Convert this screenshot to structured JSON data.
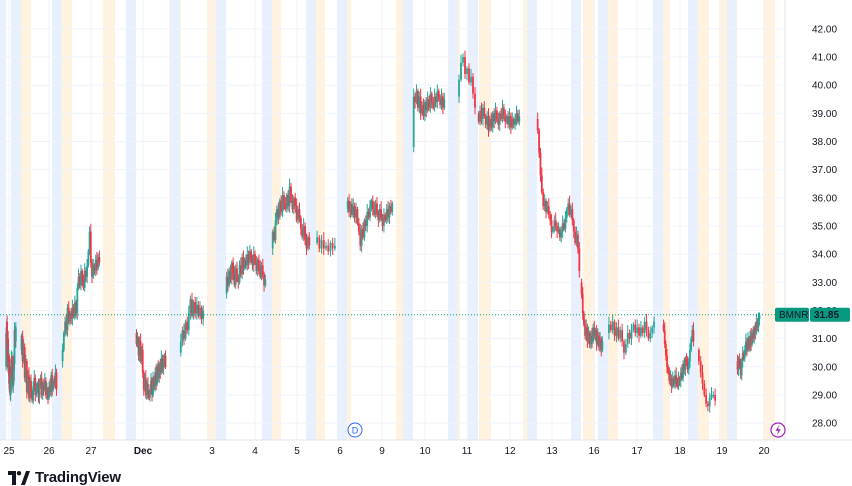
{
  "brand": {
    "name": "TradingView",
    "logo_icon": "tradingview-logo-icon"
  },
  "colors": {
    "up": "#26a69a",
    "down": "#f23645",
    "last_price": "#089981",
    "session_pre": "#fff3e0",
    "session_post": "#e8f0fe",
    "accent_purple": "#9c27b0",
    "marker_blue": "#2962ff"
  },
  "markers": {
    "dividend_label": "D",
    "flash_icon": "lightning-icon"
  },
  "chart_data": {
    "type": "candlestick",
    "symbol": "BMNR",
    "last_price": 31.85,
    "last_price_label": "31.85",
    "ylim": [
      27.4,
      42.6
    ],
    "yticks": [
      28.0,
      29.0,
      30.0,
      31.0,
      32.0,
      33.0,
      34.0,
      35.0,
      36.0,
      37.0,
      38.0,
      39.0,
      40.0,
      41.0,
      42.0
    ],
    "ytick_labels": [
      "28.00",
      "29.00",
      "30.00",
      "31.00",
      "32.00",
      "33.00",
      "34.00",
      "35.00",
      "36.00",
      "37.00",
      "38.00",
      "39.00",
      "40.00",
      "41.00",
      "42.00"
    ],
    "x_labels": [
      "25",
      "26",
      "27",
      "Dec",
      "3",
      "4",
      "5",
      "6",
      "9",
      "10",
      "11",
      "12",
      "13",
      "16",
      "17",
      "18",
      "19",
      "20"
    ],
    "grid": true,
    "days": [
      {
        "label": "25",
        "points": [
          30.0,
          31.2,
          30.6,
          31.6,
          30.9,
          30.1,
          31.0,
          30.2,
          29.8,
          30.4,
          29.4,
          30.0,
          29.1,
          29.6,
          29.0,
          29.4,
          29.2,
          30.3,
          29.8,
          30.3,
          29.6,
          30.1,
          29.3,
          29.9,
          29.5,
          30.4,
          30.1,
          31.3,
          30.8,
          31.2,
          30.9,
          31.4
        ]
      },
      {
        "label": "26",
        "points": [
          30.6,
          31.1,
          30.2,
          30.7,
          29.6,
          30.2,
          29.1,
          29.7,
          28.9,
          29.5,
          29.1,
          28.8,
          29.3,
          29.6,
          29.0,
          29.2,
          29.4,
          28.9,
          29.3,
          29.6,
          29.0,
          29.4,
          29.2,
          29.5,
          29.0,
          29.2,
          28.9,
          29.3,
          29.1,
          29.7,
          29.2,
          29.5,
          29.4,
          29.8,
          29.2
        ]
      },
      {
        "label": "27",
        "points": [
          30.2,
          30.6,
          31.2,
          31.6,
          31.3,
          32.1,
          31.6,
          31.9,
          31.7,
          32.1,
          31.8,
          32.3,
          31.9,
          32.8,
          33.2,
          32.9,
          33.4,
          33.1,
          32.8,
          33.4,
          33.2,
          33.6,
          34.1,
          34.8,
          33.7,
          33.2,
          33.6,
          33.4,
          33.8,
          33.5,
          33.9,
          33.7
        ]
      },
      {
        "label": "Dec",
        "points": [
          31.2,
          30.8,
          31.0,
          30.4,
          30.9,
          30.2,
          30.6,
          29.8,
          29.2,
          29.6,
          29.0,
          29.4,
          29.1,
          28.9,
          29.2,
          29.5,
          29.0,
          29.6,
          29.3,
          29.8,
          29.4,
          30.0,
          29.6,
          30.1,
          29.8,
          30.3,
          29.9,
          30.2,
          30.4,
          30.0
        ]
      },
      {
        "label": "3",
        "points": [
          30.5,
          30.9,
          31.3,
          31.0,
          31.6,
          31.3,
          31.9,
          32.4,
          31.8,
          32.3,
          31.9,
          32.2,
          31.8,
          32.1,
          31.7,
          32.0
        ]
      },
      {
        "label": "4",
        "points": [
          32.6,
          33.2,
          32.9,
          33.4,
          33.1,
          33.7,
          33.3,
          32.9,
          33.5,
          33.2,
          33.0,
          33.6,
          33.3,
          33.9,
          33.5,
          33.8,
          33.6,
          34.0,
          33.7,
          34.1,
          33.8,
          33.6,
          34.0,
          33.7,
          33.4,
          33.8,
          33.5,
          33.2,
          33.6,
          33.3,
          32.9,
          33.1
        ]
      },
      {
        "label": "5",
        "points": [
          34.2,
          34.8,
          34.5,
          35.2,
          35.6,
          35.3,
          35.9,
          35.5,
          36.1,
          35.8,
          35.6,
          36.1,
          35.7,
          36.4,
          35.9,
          35.6,
          36.0,
          35.7,
          35.2,
          35.6,
          35.3,
          34.9,
          34.6,
          35.0,
          34.5,
          34.2,
          34.6,
          34.3
        ]
      },
      {
        "label": "6",
        "points": [
          34.4,
          34.6,
          34.2,
          34.5,
          34.2,
          34.3,
          34.1,
          34.4,
          34.2,
          34.3
        ]
      },
      {
        "label": "9",
        "points": [
          35.6,
          35.9,
          35.5,
          35.8,
          35.4,
          35.7,
          35.3,
          35.6,
          35.1,
          34.8,
          34.3,
          34.9,
          34.6,
          35.2,
          35.0,
          35.5,
          35.3,
          35.7,
          35.9,
          35.6,
          35.4,
          35.8,
          35.5,
          35.2,
          35.6,
          35.3,
          35.0,
          35.4,
          35.2,
          35.6,
          35.3,
          35.7,
          35.5,
          35.8
        ]
      },
      {
        "label": "10",
        "points": [
          37.8,
          39.6,
          39.4,
          39.8,
          39.2,
          39.6,
          39.0,
          39.3,
          38.9,
          39.4,
          39.1,
          39.5,
          39.2,
          39.7,
          39.4,
          39.2,
          39.6,
          39.4,
          39.8,
          39.5,
          39.3,
          39.6,
          39.2,
          39.5
        ]
      },
      {
        "label": "11",
        "points": [
          39.6,
          40.2,
          40.8,
          41.0,
          40.4,
          40.6,
          40.1,
          40.3,
          39.7,
          39.2
        ]
      },
      {
        "label": "12",
        "points": [
          39.0,
          38.7,
          39.1,
          38.8,
          39.2,
          38.9,
          38.6,
          38.9,
          38.4,
          38.8,
          38.5,
          39.0,
          38.7,
          39.1,
          38.8,
          38.6,
          39.0,
          38.8,
          39.2,
          38.9,
          38.7,
          38.9,
          38.6,
          38.9,
          38.5,
          38.8,
          38.6,
          38.8,
          39.0,
          38.7,
          38.9
        ]
      },
      {
        "label": "13",
        "points": [
          38.8,
          38.4,
          37.6,
          36.8,
          36.2,
          35.7,
          35.9,
          35.5,
          35.7,
          35.4,
          35.2,
          34.8,
          34.9,
          35.2,
          35.0,
          34.8,
          34.9,
          34.6,
          34.8,
          35.1,
          34.9,
          35.3,
          35.6,
          35.8,
          35.4,
          35.6,
          35.2,
          34.8,
          34.4,
          34.7,
          34.2,
          33.4
        ]
      },
      {
        "label": "16",
        "points": [
          33.0,
          32.6,
          31.9,
          31.5,
          31.1,
          31.4,
          30.9,
          31.2,
          30.8,
          31.1,
          30.9,
          31.4,
          31.1,
          31.3,
          30.8,
          31.1,
          30.7,
          31.0,
          30.6,
          30.9
        ]
      },
      {
        "label": "17",
        "points": [
          31.2,
          31.5,
          31.3,
          31.6,
          31.1,
          31.4,
          31.0,
          31.3,
          30.9,
          30.5,
          30.8,
          31.2,
          31.0,
          31.3,
          31.5,
          31.2,
          31.4,
          31.1,
          31.4,
          31.2,
          31.6,
          31.3,
          31.0,
          31.2,
          31.4,
          31.6
        ]
      },
      {
        "label": "18",
        "points": [
          31.5,
          31.3,
          30.8,
          30.4,
          30.0,
          29.8,
          29.5,
          29.6,
          29.3,
          29.6,
          29.4,
          29.7,
          29.5,
          29.3,
          29.6,
          29.5,
          29.8,
          29.6,
          30.1,
          29.9,
          30.3,
          30.1,
          29.9,
          30.2,
          30.6,
          31.0,
          31.3,
          30.9
        ]
      },
      {
        "label": "19",
        "points": [
          30.6,
          30.2,
          29.8,
          29.4,
          29.0,
          28.7,
          28.6,
          28.9,
          29.0,
          29.0,
          28.8
        ]
      },
      {
        "label": "20",
        "points": [
          30.2,
          29.9,
          30.3,
          30.0,
          29.7,
          30.2,
          30.5,
          30.3,
          30.6,
          30.9,
          30.6,
          31.0,
          30.7,
          31.1,
          30.8,
          31.2,
          31.0,
          31.4,
          31.2,
          31.6,
          31.4,
          31.7,
          31.85
        ]
      }
    ]
  }
}
